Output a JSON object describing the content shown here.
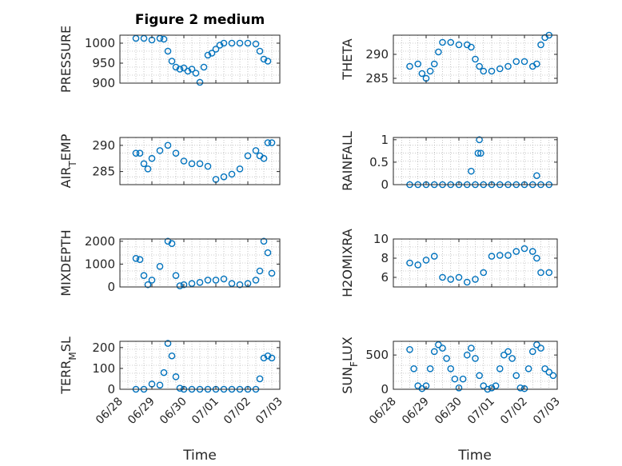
{
  "figure": {
    "title": "Figure 2 medium",
    "xlabel": "Time"
  },
  "colors": {
    "marker": "#0072BD",
    "axis": "#262626",
    "grid": "#a0a0a0",
    "background": "#ffffff"
  },
  "x_ticks": [
    "06/28",
    "06/29",
    "06/30",
    "07/01",
    "07/02",
    "07/03"
  ],
  "chart_data": [
    {
      "type": "scatter",
      "ylabel": "PRESSURE",
      "ylim": [
        900,
        1020
      ],
      "yticks": [
        900,
        950,
        1000
      ],
      "grid": true,
      "x_ticks_visible": false,
      "x": [
        "06/28 12:00",
        "06/28 18:00",
        "06/29 00:00",
        "06/29 06:00",
        "06/29 09:00",
        "06/29 12:00",
        "06/29 15:00",
        "06/29 18:00",
        "06/29 21:00",
        "06/30 00:00",
        "06/30 03:00",
        "06/30 06:00",
        "06/30 09:00",
        "06/30 12:00",
        "06/30 15:00",
        "06/30 18:00",
        "06/30 21:00",
        "07/01 00:00",
        "07/01 03:00",
        "07/01 06:00",
        "07/01 12:00",
        "07/01 18:00",
        "07/02 00:00",
        "07/02 06:00",
        "07/02 09:00",
        "07/02 12:00",
        "07/02 15:00"
      ],
      "y": [
        1012,
        1012,
        1008,
        1012,
        1010,
        980,
        955,
        940,
        935,
        938,
        930,
        935,
        925,
        902,
        940,
        970,
        975,
        985,
        995,
        1000,
        1000,
        1000,
        1000,
        998,
        980,
        960,
        955
      ]
    },
    {
      "type": "scatter",
      "ylabel": "THETA",
      "ylim": [
        284,
        294
      ],
      "yticks": [
        285,
        290
      ],
      "grid": true,
      "x_ticks_visible": false,
      "x": [
        "06/28 12:00",
        "06/28 18:00",
        "06/28 21:00",
        "06/29 00:00",
        "06/29 03:00",
        "06/29 06:00",
        "06/29 09:00",
        "06/29 12:00",
        "06/29 18:00",
        "06/30 00:00",
        "06/30 06:00",
        "06/30 09:00",
        "06/30 12:00",
        "06/30 15:00",
        "06/30 18:00",
        "07/01 00:00",
        "07/01 06:00",
        "07/01 12:00",
        "07/01 18:00",
        "07/02 00:00",
        "07/02 06:00",
        "07/02 09:00",
        "07/02 12:00",
        "07/02 15:00",
        "07/02 18:00"
      ],
      "y": [
        287.5,
        288,
        286,
        285,
        286.5,
        288,
        290.5,
        292.5,
        292.5,
        292,
        292,
        291.5,
        289,
        287.5,
        286.5,
        286.5,
        287,
        287.5,
        288.5,
        288.5,
        287.5,
        288,
        292,
        293.5,
        294
      ]
    },
    {
      "type": "scatter",
      "ylabel": "AIR_TEMP",
      "ylim": [
        282.5,
        291.5
      ],
      "yticks": [
        285,
        290
      ],
      "grid": true,
      "x_ticks_visible": false,
      "x": [
        "06/28 12:00",
        "06/28 15:00",
        "06/28 18:00",
        "06/28 21:00",
        "06/29 00:00",
        "06/29 06:00",
        "06/29 12:00",
        "06/29 18:00",
        "06/30 00:00",
        "06/30 06:00",
        "06/30 12:00",
        "06/30 18:00",
        "07/01 00:00",
        "07/01 06:00",
        "07/01 12:00",
        "07/01 18:00",
        "07/02 00:00",
        "07/02 06:00",
        "07/02 09:00",
        "07/02 12:00",
        "07/02 15:00",
        "07/02 18:00"
      ],
      "y": [
        288.5,
        288.5,
        286.5,
        285.5,
        287.5,
        289,
        290,
        288.5,
        287,
        286.5,
        286.5,
        286,
        283.5,
        284,
        284.5,
        285.5,
        288,
        289,
        288,
        287.5,
        290.5,
        290.5
      ]
    },
    {
      "type": "scatter",
      "ylabel": "RAINFALL",
      "ylim": [
        0,
        1.05
      ],
      "yticks": [
        0,
        0.5,
        1
      ],
      "grid": true,
      "x_ticks_visible": false,
      "x": [
        "06/28 12:00",
        "06/28 18:00",
        "06/29 00:00",
        "06/29 06:00",
        "06/29 12:00",
        "06/29 18:00",
        "06/30 00:00",
        "06/30 06:00",
        "06/30 09:00",
        "06/30 12:00",
        "06/30 14:00",
        "06/30 15:00",
        "06/30 16:00",
        "06/30 18:00",
        "07/01 00:00",
        "07/01 06:00",
        "07/01 12:00",
        "07/01 18:00",
        "07/02 00:00",
        "07/02 06:00",
        "07/02 09:00",
        "07/02 12:00",
        "07/02 18:00"
      ],
      "y": [
        0,
        0,
        0,
        0,
        0,
        0,
        0,
        0,
        0.3,
        0,
        0.7,
        1,
        0.7,
        0,
        0,
        0,
        0,
        0,
        0,
        0,
        0.2,
        0,
        0
      ]
    },
    {
      "type": "scatter",
      "ylabel": "MIXDEPTH",
      "ylim": [
        0,
        2100
      ],
      "yticks": [
        0,
        1000,
        2000
      ],
      "grid": true,
      "x_ticks_visible": false,
      "x": [
        "06/28 12:00",
        "06/28 15:00",
        "06/28 18:00",
        "06/28 21:00",
        "06/29 00:00",
        "06/29 06:00",
        "06/29 12:00",
        "06/29 15:00",
        "06/29 18:00",
        "06/29 21:00",
        "06/30 00:00",
        "06/30 06:00",
        "06/30 12:00",
        "06/30 18:00",
        "07/01 00:00",
        "07/01 06:00",
        "07/01 12:00",
        "07/01 18:00",
        "07/02 00:00",
        "07/02 06:00",
        "07/02 09:00",
        "07/02 12:00",
        "07/02 15:00",
        "07/02 18:00"
      ],
      "y": [
        1250,
        1200,
        500,
        100,
        300,
        900,
        2000,
        1900,
        500,
        50,
        100,
        150,
        200,
        300,
        300,
        350,
        150,
        100,
        150,
        300,
        700,
        2000,
        1500,
        600
      ]
    },
    {
      "type": "scatter",
      "ylabel": "H2OMIXRA",
      "ylim": [
        5,
        10
      ],
      "yticks": [
        6,
        8,
        10
      ],
      "grid": true,
      "x_ticks_visible": false,
      "x": [
        "06/28 12:00",
        "06/28 18:00",
        "06/29 00:00",
        "06/29 06:00",
        "06/29 12:00",
        "06/29 18:00",
        "06/30 00:00",
        "06/30 06:00",
        "06/30 12:00",
        "06/30 18:00",
        "07/01 00:00",
        "07/01 06:00",
        "07/01 12:00",
        "07/01 18:00",
        "07/02 00:00",
        "07/02 06:00",
        "07/02 09:00",
        "07/02 12:00",
        "07/02 18:00"
      ],
      "y": [
        7.5,
        7.3,
        7.8,
        8.2,
        6,
        5.8,
        6,
        5.5,
        5.8,
        6.5,
        8.2,
        8.3,
        8.3,
        8.7,
        9,
        8.7,
        8,
        6.5,
        6.5
      ]
    },
    {
      "type": "scatter",
      "ylabel": "TERR_MSL",
      "ylim": [
        0,
        230
      ],
      "yticks": [
        0,
        100,
        200
      ],
      "grid": true,
      "x_ticks_visible": true,
      "x": [
        "06/28 12:00",
        "06/28 18:00",
        "06/29 00:00",
        "06/29 06:00",
        "06/29 09:00",
        "06/29 12:00",
        "06/29 15:00",
        "06/29 18:00",
        "06/29 21:00",
        "06/30 00:00",
        "06/30 06:00",
        "06/30 12:00",
        "06/30 18:00",
        "07/01 00:00",
        "07/01 06:00",
        "07/01 12:00",
        "07/01 18:00",
        "07/02 00:00",
        "07/02 06:00",
        "07/02 09:00",
        "07/02 12:00",
        "07/02 15:00",
        "07/02 18:00"
      ],
      "y": [
        0,
        0,
        25,
        20,
        80,
        220,
        160,
        60,
        5,
        0,
        0,
        0,
        0,
        0,
        0,
        0,
        0,
        0,
        0,
        50,
        150,
        160,
        150
      ]
    },
    {
      "type": "scatter",
      "ylabel": "SUN_FLUX",
      "ylim": [
        0,
        700
      ],
      "yticks": [
        0,
        500
      ],
      "grid": true,
      "x_ticks_visible": true,
      "x": [
        "06/28 12:00",
        "06/28 15:00",
        "06/28 18:00",
        "06/28 21:00",
        "06/29 00:00",
        "06/29 03:00",
        "06/29 06:00",
        "06/29 09:00",
        "06/29 12:00",
        "06/29 15:00",
        "06/29 18:00",
        "06/29 21:00",
        "06/30 00:00",
        "06/30 03:00",
        "06/30 06:00",
        "06/30 09:00",
        "06/30 12:00",
        "06/30 15:00",
        "06/30 18:00",
        "06/30 21:00",
        "07/01 00:00",
        "07/01 03:00",
        "07/01 06:00",
        "07/01 09:00",
        "07/01 12:00",
        "07/01 15:00",
        "07/01 18:00",
        "07/01 21:00",
        "07/02 00:00",
        "07/02 03:00",
        "07/02 06:00",
        "07/02 09:00",
        "07/02 12:00",
        "07/02 15:00",
        "07/02 18:00",
        "07/02 21:00"
      ],
      "y": [
        580,
        300,
        50,
        10,
        50,
        300,
        550,
        650,
        600,
        450,
        300,
        150,
        20,
        150,
        500,
        600,
        450,
        200,
        50,
        0,
        20,
        50,
        300,
        500,
        550,
        450,
        200,
        20,
        10,
        300,
        550,
        650,
        600,
        300,
        250,
        200
      ]
    }
  ]
}
